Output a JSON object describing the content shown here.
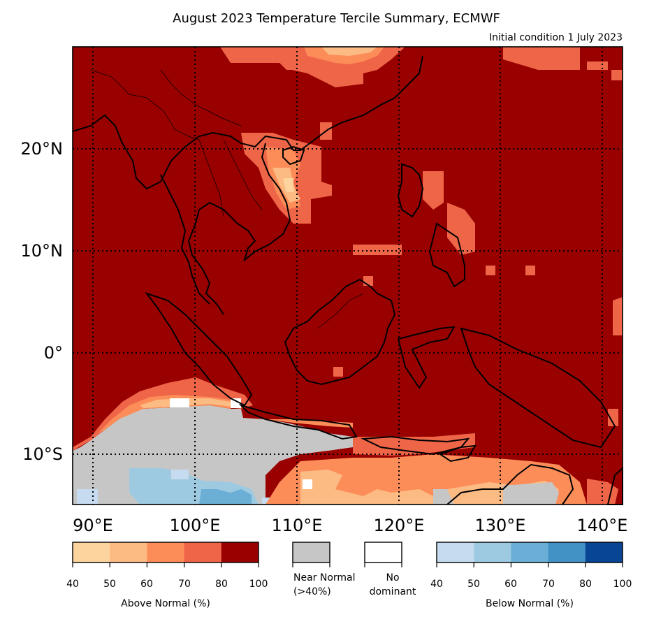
{
  "title": "August 2023 Temperature Tercile Summary, ECMWF",
  "subtitle": "Initial condition 1 July 2023",
  "map": {
    "lon_range": [
      87,
      141
    ],
    "lat_range": [
      -15,
      30
    ],
    "lon_ticks": [
      "90°E",
      "100°E",
      "110°E",
      "120°E",
      "130°E",
      "140°E"
    ],
    "lat_ticks": [
      "20°N",
      "10°N",
      "0°",
      "10°S"
    ],
    "dominant_fill": "#990000",
    "grid_style": "dotted"
  },
  "legend": {
    "above": {
      "title": "Above Normal (%)",
      "ticks": [
        "40",
        "50",
        "60",
        "70",
        "80",
        "100"
      ],
      "colors": [
        "#fdd49e",
        "#fdbb84",
        "#fc8d59",
        "#ef6548",
        "#990000"
      ]
    },
    "near": {
      "label_line1": "Near Normal",
      "label_line2": "(>40%)",
      "color": "#c6c6c6"
    },
    "none": {
      "label_line1": "No",
      "label_line2": "dominant",
      "color": "#ffffff"
    },
    "below": {
      "title": "Below Normal (%)",
      "ticks": [
        "40",
        "50",
        "60",
        "70",
        "80",
        "100"
      ],
      "colors": [
        "#c6dbef",
        "#9ecae1",
        "#6baed6",
        "#4292c6",
        "#084594"
      ]
    }
  }
}
